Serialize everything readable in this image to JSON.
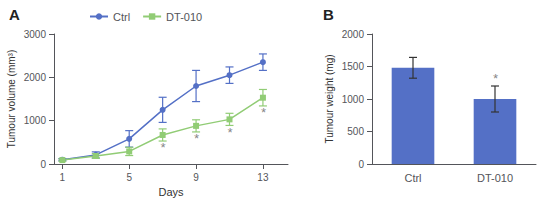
{
  "chart_data": [
    {
      "type": "line",
      "title": "A",
      "xlabel": "Days",
      "ylabel": "Tumour volume (mm³)",
      "xlim": [
        0.5,
        14.5
      ],
      "xticks": [
        1,
        5,
        9,
        13
      ],
      "ylim": [
        0,
        3000
      ],
      "yticks": [
        0,
        1000,
        2000,
        3000
      ],
      "grid": false,
      "legend": "upper left",
      "series": [
        {
          "name": "Ctrl",
          "marker": "circle",
          "x": [
            1,
            3,
            5,
            7,
            9,
            11,
            13
          ],
          "values": [
            100,
            210,
            580,
            1250,
            1800,
            2050,
            2350
          ],
          "yerr": [
            25,
            70,
            190,
            290,
            360,
            190,
            190
          ]
        },
        {
          "name": "DT-010",
          "marker": "square",
          "x": [
            1,
            3,
            5,
            7,
            9,
            11,
            13
          ],
          "values": [
            90,
            185,
            290,
            670,
            880,
            1030,
            1530
          ],
          "yerr": [
            25,
            55,
            95,
            140,
            140,
            140,
            190
          ]
        }
      ],
      "annotations": [
        {
          "text": "*",
          "x": 7,
          "y": 525
        },
        {
          "text": "*",
          "x": 9,
          "y": 730
        },
        {
          "text": "*",
          "x": 11,
          "y": 880
        },
        {
          "text": "*",
          "x": 13,
          "y": 1330
        }
      ]
    },
    {
      "type": "bar",
      "title": "B",
      "ylabel": "Tumour weight (mg)",
      "categories": [
        "Ctrl",
        "DT-010"
      ],
      "values": [
        1480,
        1000
      ],
      "yerr": [
        160,
        200
      ],
      "ylim": [
        0,
        2000
      ],
      "yticks": [
        0,
        500,
        1000,
        1500,
        2000
      ],
      "grid": false,
      "annotations": [
        {
          "text": "*",
          "x": "DT-010",
          "y": 1215
        }
      ]
    }
  ]
}
